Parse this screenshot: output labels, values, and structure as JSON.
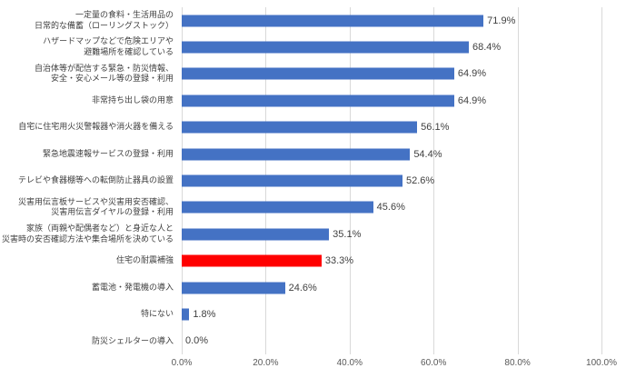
{
  "chart_data": {
    "type": "bar",
    "orientation": "horizontal",
    "title": "",
    "xlabel": "",
    "ylabel": "",
    "xlim": [
      0,
      100
    ],
    "grid": true,
    "categories": [
      "一定量の食料・生活用品の\n日常的な備蓄（ローリングストック）",
      "ハザードマップなどで危険エリアや\n避難場所を確認している",
      "自治体等が配信する緊急・防災情報、\n安全・安心メール等の登録・利用",
      "非常持ち出し袋の用意",
      "自宅に住宅用火災警報器や消火器を備える",
      "緊急地震速報サービスの登録・利用",
      "テレビや食器棚等への転倒防止器具の設置",
      "災害用伝言板サービスや災害用安否確認、\n災害用伝言ダイヤルの登録・利用",
      "家族（両親や配偶者など）と身近な人と\n災害時の安否確認方法や集合場所を決めている",
      "住宅の耐震補強",
      "蓄電池・発電機の導入",
      "特にない",
      "防災シェルターの導入"
    ],
    "values": [
      71.9,
      68.4,
      64.9,
      64.9,
      56.1,
      54.4,
      52.6,
      45.6,
      35.1,
      33.3,
      24.6,
      1.8,
      0.0
    ],
    "value_labels": [
      "71.9%",
      "68.4%",
      "64.9%",
      "64.9%",
      "56.1%",
      "54.4%",
      "52.6%",
      "45.6%",
      "35.1%",
      "33.3%",
      "24.6%",
      "1.8%",
      "0.0%"
    ],
    "highlight_index": 9,
    "colors": {
      "default": "#4472c4",
      "highlight": "#ff0000",
      "gridline": "#d9d9d9",
      "label_text": "#404040",
      "axis_text": "#595959"
    },
    "x_tick_values": [
      0,
      20,
      40,
      60,
      80,
      100
    ],
    "x_tick_labels": [
      "0.0%",
      "20.0%",
      "40.0%",
      "60.0%",
      "80.0%",
      "100.0%"
    ],
    "legend": "none"
  }
}
